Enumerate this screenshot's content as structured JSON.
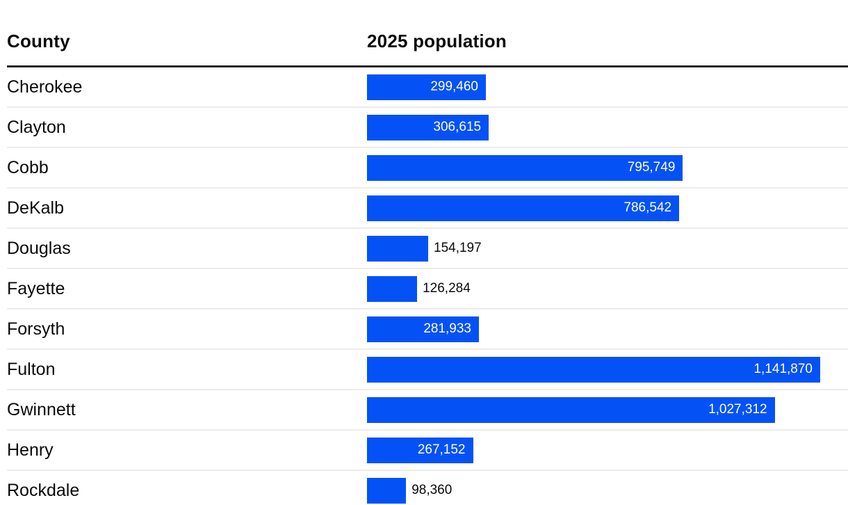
{
  "header": {
    "county_label": "County",
    "population_label": "2025 population"
  },
  "chart_data": {
    "type": "bar",
    "orientation": "horizontal",
    "title": "",
    "xlabel": "County",
    "ylabel": "2025 population",
    "categories": [
      "Cherokee",
      "Clayton",
      "Cobb",
      "DeKalb",
      "Douglas",
      "Fayette",
      "Forsyth",
      "Fulton",
      "Gwinnett",
      "Henry",
      "Rockdale"
    ],
    "values": [
      299460,
      306615,
      795749,
      786542,
      154197,
      126284,
      281933,
      1141870,
      1027312,
      267152,
      98360
    ],
    "value_labels": [
      "299,460",
      "306,615",
      "795,749",
      "786,542",
      "154,197",
      "126,284",
      "281,933",
      "1,141,870",
      "1,027,312",
      "267,152",
      "98,360"
    ],
    "xlim": [
      0,
      1141870
    ],
    "bar_color": "#0452f5",
    "label_inside_color": "#ffffff",
    "label_outside_color": "#0a0a0a",
    "grid": false,
    "legend": false
  }
}
